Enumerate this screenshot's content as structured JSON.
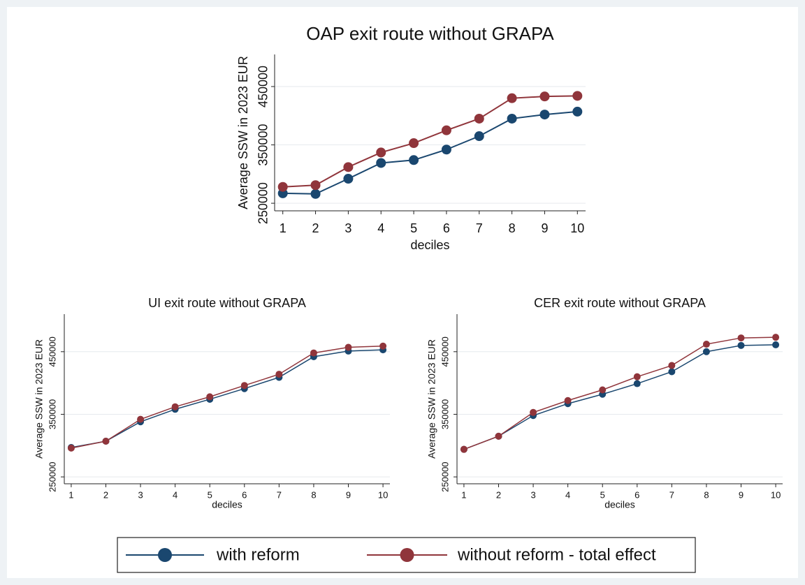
{
  "chart_data": [
    {
      "type": "line",
      "title": "OAP exit route without GRAPA",
      "x_label": "deciles",
      "y_label": "Average SSW in 2023 EUR",
      "x": [
        1,
        2,
        3,
        4,
        5,
        6,
        7,
        8,
        9,
        10
      ],
      "xlim": [
        0.75,
        10.25
      ],
      "xticks": [
        1,
        2,
        3,
        4,
        5,
        6,
        7,
        8,
        9,
        10
      ],
      "ylim": [
        237000,
        505000
      ],
      "yticks": [
        250000,
        350000,
        450000
      ],
      "grid": true,
      "series": [
        {
          "name": "with reform",
          "color": "#1a476f",
          "values": [
            267000,
            266000,
            292000,
            319000,
            324000,
            342000,
            365000,
            395000,
            402000,
            407000
          ]
        },
        {
          "name": "without reform - total effect",
          "color": "#90353b",
          "values": [
            278000,
            281000,
            312000,
            337000,
            353000,
            375000,
            395000,
            430000,
            433000,
            434000
          ]
        }
      ]
    },
    {
      "type": "line",
      "title": "UI exit route without GRAPA",
      "x_label": "deciles",
      "y_label": "Average SSW in 2023 EUR",
      "x": [
        1,
        2,
        3,
        4,
        5,
        6,
        7,
        8,
        9,
        10
      ],
      "xlim": [
        0.8,
        10.2
      ],
      "xticks": [
        1,
        2,
        3,
        4,
        5,
        6,
        7,
        8,
        9,
        10
      ],
      "ylim": [
        239000,
        510000
      ],
      "yticks": [
        250000,
        350000,
        450000
      ],
      "grid": true,
      "series": [
        {
          "color": "#1a476f",
          "values": [
            297000,
            307000,
            338000,
            358000,
            374000,
            391000,
            409000,
            442000,
            451000,
            453000
          ]
        },
        {
          "color": "#90353b",
          "values": [
            296000,
            307000,
            342000,
            362000,
            378000,
            396000,
            414000,
            448000,
            457000,
            459000
          ]
        }
      ]
    },
    {
      "type": "line",
      "title": "CER exit route without GRAPA",
      "x_label": "deciles",
      "y_label": "Average SSW in 2023 EUR",
      "x": [
        1,
        2,
        3,
        4,
        5,
        6,
        7,
        8,
        9,
        10
      ],
      "xlim": [
        0.8,
        10.2
      ],
      "xticks": [
        1,
        2,
        3,
        4,
        5,
        6,
        7,
        8,
        9,
        10
      ],
      "ylim": [
        239000,
        510000
      ],
      "yticks": [
        250000,
        350000,
        450000
      ],
      "grid": true,
      "series": [
        {
          "color": "#1a476f",
          "values": [
            294000,
            315000,
            348000,
            367000,
            382000,
            399000,
            418000,
            450000,
            460000,
            461000
          ]
        },
        {
          "color": "#90353b",
          "values": [
            294000,
            315000,
            353000,
            372000,
            389000,
            410000,
            428000,
            462000,
            472000,
            473000
          ]
        }
      ]
    }
  ]
}
